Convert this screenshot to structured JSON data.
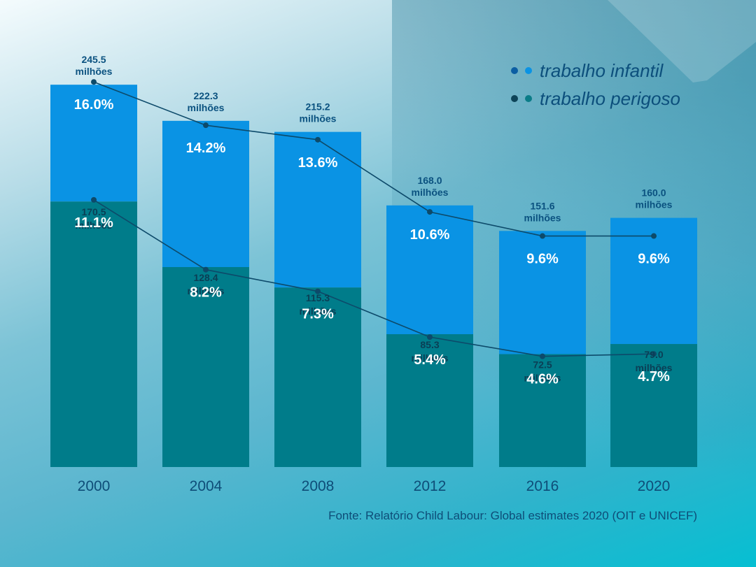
{
  "colors": {
    "child_labour_bar": "#0a93e4",
    "hazardous_bar": "#007c8a",
    "line": "#0d4a6a",
    "legend_dot_dark_blue": "#0b5ea3",
    "legend_dot_light_blue": "#0a93e4",
    "legend_dot_dark_teal": "#0d4458",
    "legend_dot_teal": "#0a7c87"
  },
  "chart_data": {
    "type": "bar",
    "title": "",
    "xlabel": "",
    "ylabel": "",
    "ylim": [
      0,
      255
    ],
    "categories": [
      "2000",
      "2004",
      "2008",
      "2012",
      "2016",
      "2020"
    ],
    "series": [
      {
        "name": "trabalho infantil",
        "values": [
          245.5,
          222.3,
          215.2,
          168.0,
          151.6,
          160.0
        ],
        "value_labels": [
          "245.5 milhões",
          "222.3 milhões",
          "215.2 milhões",
          "168.0 milhões",
          "151.6 milhões",
          "160.0 milhões"
        ],
        "percent_values": [
          16.0,
          14.2,
          13.6,
          10.6,
          9.6,
          9.6
        ],
        "percent_labels": [
          "16.0%",
          "14.2%",
          "13.6%",
          "10.6%",
          "9.6%",
          "9.6%"
        ]
      },
      {
        "name": "trabalho perigoso",
        "values": [
          170.5,
          128.4,
          115.3,
          85.3,
          72.5,
          79.0
        ],
        "value_labels": [
          "170.5 milhões",
          "128.4 milhões",
          "115.3 milhões",
          "85.3 milhões",
          "72.5 milhões",
          "79.0 milhões"
        ],
        "percent_values": [
          11.1,
          8.2,
          7.3,
          5.4,
          4.6,
          4.7
        ],
        "percent_labels": [
          "11.1%",
          "8.2%",
          "7.3%",
          "5.4%",
          "4.6%",
          "4.7%"
        ]
      }
    ],
    "legend": [
      {
        "label": "trabalho infantil"
      },
      {
        "label": "trabalho perigoso"
      }
    ],
    "legend_position": "top-right",
    "grid": false
  },
  "source": "Fonte: Relatório Child Labour: Global estimates 2020 (OIT e UNICEF)"
}
